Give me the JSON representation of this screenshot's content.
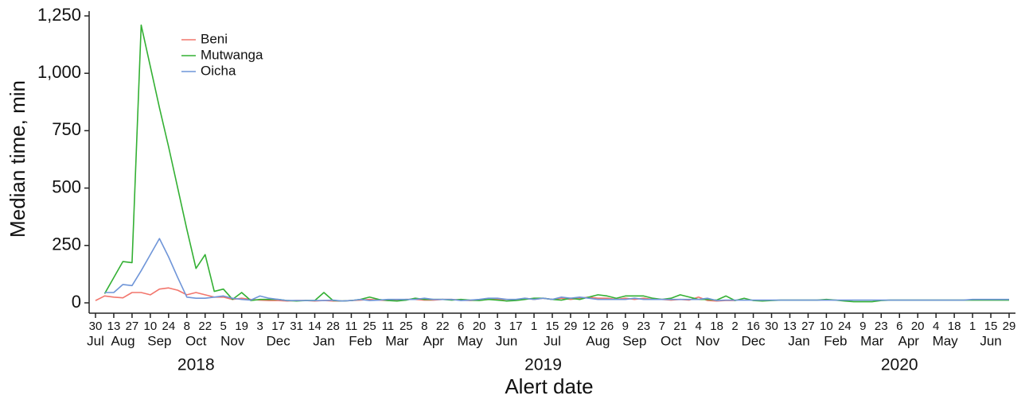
{
  "chart_data": {
    "type": "line",
    "xlabel": "Alert date",
    "ylabel": "Median time, min",
    "legend": "upper left",
    "x": [
      "2018-07-30",
      "2018-08-06",
      "2018-08-13",
      "2018-08-20",
      "2018-08-27",
      "2018-09-03",
      "2018-09-10",
      "2018-09-17",
      "2018-09-24",
      "2018-10-01",
      "2018-10-08",
      "2018-10-15",
      "2018-10-22",
      "2018-10-29",
      "2018-11-05",
      "2018-11-12",
      "2018-11-19",
      "2018-11-26",
      "2018-12-03",
      "2018-12-10",
      "2018-12-17",
      "2018-12-24",
      "2018-12-31",
      "2019-01-07",
      "2019-01-14",
      "2019-01-21",
      "2019-01-28",
      "2019-02-04",
      "2019-02-11",
      "2019-02-18",
      "2019-02-25",
      "2019-03-04",
      "2019-03-11",
      "2019-03-18",
      "2019-03-25",
      "2019-04-01",
      "2019-04-08",
      "2019-04-15",
      "2019-04-22",
      "2019-04-29",
      "2019-05-06",
      "2019-05-13",
      "2019-05-20",
      "2019-05-27",
      "2019-06-03",
      "2019-06-10",
      "2019-06-17",
      "2019-06-24",
      "2019-07-01",
      "2019-07-08",
      "2019-07-15",
      "2019-07-22",
      "2019-07-29",
      "2019-08-05",
      "2019-08-12",
      "2019-08-19",
      "2019-08-26",
      "2019-09-02",
      "2019-09-09",
      "2019-09-16",
      "2019-09-23",
      "2019-09-30",
      "2019-10-07",
      "2019-10-14",
      "2019-10-21",
      "2019-10-28",
      "2019-11-04",
      "2019-11-11",
      "2019-11-18",
      "2019-11-25",
      "2019-12-02",
      "2019-12-09",
      "2019-12-16",
      "2019-12-23",
      "2019-12-30",
      "2020-01-06",
      "2020-01-13",
      "2020-01-20",
      "2020-01-27",
      "2020-02-03",
      "2020-02-10",
      "2020-02-17",
      "2020-02-24",
      "2020-03-02",
      "2020-03-09",
      "2020-03-16",
      "2020-03-23",
      "2020-03-30",
      "2020-04-06",
      "2020-04-13",
      "2020-04-20",
      "2020-04-27",
      "2020-05-04",
      "2020-05-11",
      "2020-05-18",
      "2020-05-25",
      "2020-06-01",
      "2020-06-08",
      "2020-06-15",
      "2020-06-22",
      "2020-06-29"
    ],
    "series": [
      {
        "name": "Beni",
        "color": "#f2766d",
        "values": [
          10,
          30,
          25,
          22,
          45,
          45,
          35,
          60,
          65,
          55,
          35,
          45,
          35,
          25,
          25,
          15,
          20,
          15,
          12,
          10,
          10,
          8,
          10,
          10,
          8,
          10,
          8,
          8,
          10,
          12,
          15,
          12,
          10,
          12,
          15,
          15,
          12,
          12,
          15,
          15,
          12,
          10,
          12,
          15,
          15,
          15,
          12,
          20,
          15,
          20,
          15,
          20,
          15,
          20,
          25,
          20,
          20,
          15,
          20,
          15,
          20,
          15,
          15,
          12,
          15,
          12,
          25,
          10,
          8,
          10,
          10,
          null,
          null,
          null,
          null,
          null,
          null,
          null,
          null,
          null,
          null,
          null,
          null,
          null,
          null,
          null,
          null,
          null,
          null,
          null,
          null,
          null,
          null,
          null,
          null,
          null,
          null,
          null,
          null,
          null,
          null
        ]
      },
      {
        "name": "Mutwanga",
        "color": "#33b033",
        "values": [
          null,
          40,
          110,
          180,
          175,
          1210,
          1030,
          850,
          680,
          500,
          320,
          150,
          210,
          50,
          60,
          15,
          45,
          10,
          15,
          15,
          15,
          10,
          8,
          10,
          10,
          45,
          10,
          8,
          10,
          15,
          25,
          15,
          10,
          8,
          12,
          20,
          15,
          15,
          15,
          12,
          15,
          12,
          10,
          15,
          12,
          8,
          10,
          15,
          20,
          20,
          15,
          12,
          20,
          15,
          25,
          35,
          30,
          20,
          30,
          30,
          30,
          20,
          15,
          20,
          35,
          25,
          15,
          15,
          12,
          30,
          10,
          20,
          10,
          8,
          10,
          12,
          12,
          12,
          12,
          12,
          15,
          12,
          8,
          5,
          5,
          5,
          10,
          12,
          12,
          12,
          12,
          12,
          12,
          12,
          12,
          12,
          12,
          12,
          12,
          12,
          12
        ]
      },
      {
        "name": "Oicha",
        "color": "#6f95d8",
        "values": [
          null,
          45,
          45,
          80,
          75,
          140,
          210,
          280,
          200,
          110,
          25,
          20,
          20,
          25,
          30,
          20,
          15,
          12,
          30,
          20,
          15,
          10,
          10,
          10,
          10,
          10,
          12,
          8,
          10,
          15,
          10,
          12,
          15,
          15,
          15,
          15,
          20,
          15,
          15,
          15,
          10,
          12,
          15,
          20,
          20,
          15,
          15,
          20,
          15,
          20,
          15,
          25,
          20,
          25,
          20,
          15,
          15,
          15,
          15,
          20,
          15,
          15,
          15,
          15,
          15,
          15,
          15,
          20,
          10,
          12,
          12,
          12,
          12,
          12,
          12,
          12,
          12,
          12,
          12,
          12,
          12,
          12,
          12,
          12,
          12,
          12,
          12,
          12,
          12,
          12,
          12,
          12,
          12,
          12,
          12,
          12,
          15,
          15,
          15,
          15,
          15
        ]
      }
    ],
    "xlim": [
      "2018-07-30",
      "2020-06-29"
    ],
    "xticks": [
      {
        "value": "2018-07-30",
        "label": "30"
      },
      {
        "value": "2018-08-13",
        "label": "13"
      },
      {
        "value": "2018-08-27",
        "label": "27"
      },
      {
        "value": "2018-09-10",
        "label": "10"
      },
      {
        "value": "2018-09-24",
        "label": "24"
      },
      {
        "value": "2018-10-08",
        "label": "8"
      },
      {
        "value": "2018-10-22",
        "label": "22"
      },
      {
        "value": "2018-11-05",
        "label": "5"
      },
      {
        "value": "2018-11-19",
        "label": "19"
      },
      {
        "value": "2018-12-03",
        "label": "3"
      },
      {
        "value": "2018-12-17",
        "label": "17"
      },
      {
        "value": "2018-12-31",
        "label": "31"
      },
      {
        "value": "2019-01-14",
        "label": "14"
      },
      {
        "value": "2019-01-28",
        "label": "28"
      },
      {
        "value": "2019-02-11",
        "label": "11"
      },
      {
        "value": "2019-02-25",
        "label": "25"
      },
      {
        "value": "2019-03-11",
        "label": "11"
      },
      {
        "value": "2019-03-25",
        "label": "25"
      },
      {
        "value": "2019-04-08",
        "label": "8"
      },
      {
        "value": "2019-04-22",
        "label": "22"
      },
      {
        "value": "2019-05-06",
        "label": "6"
      },
      {
        "value": "2019-05-20",
        "label": "20"
      },
      {
        "value": "2019-06-03",
        "label": "3"
      },
      {
        "value": "2019-06-17",
        "label": "17"
      },
      {
        "value": "2019-07-01",
        "label": "1"
      },
      {
        "value": "2019-07-15",
        "label": "15"
      },
      {
        "value": "2019-07-29",
        "label": "29"
      },
      {
        "value": "2019-08-12",
        "label": "12"
      },
      {
        "value": "2019-08-26",
        "label": "26"
      },
      {
        "value": "2019-09-09",
        "label": "9"
      },
      {
        "value": "2019-09-23",
        "label": "23"
      },
      {
        "value": "2019-10-07",
        "label": "7"
      },
      {
        "value": "2019-10-21",
        "label": "21"
      },
      {
        "value": "2019-11-04",
        "label": "4"
      },
      {
        "value": "2019-11-18",
        "label": "18"
      },
      {
        "value": "2019-12-02",
        "label": "2"
      },
      {
        "value": "2019-12-16",
        "label": "16"
      },
      {
        "value": "2019-12-30",
        "label": "30"
      },
      {
        "value": "2020-01-13",
        "label": "13"
      },
      {
        "value": "2020-01-27",
        "label": "27"
      },
      {
        "value": "2020-02-10",
        "label": "10"
      },
      {
        "value": "2020-02-24",
        "label": "24"
      },
      {
        "value": "2020-03-09",
        "label": "9"
      },
      {
        "value": "2020-03-23",
        "label": "23"
      },
      {
        "value": "2020-04-06",
        "label": "6"
      },
      {
        "value": "2020-04-20",
        "label": "20"
      },
      {
        "value": "2020-05-04",
        "label": "4"
      },
      {
        "value": "2020-05-18",
        "label": "18"
      },
      {
        "value": "2020-06-01",
        "label": "1"
      },
      {
        "value": "2020-06-15",
        "label": "15"
      },
      {
        "value": "2020-06-29",
        "label": "29"
      }
    ],
    "x_month_labels": [
      "Jul",
      "Aug",
      "Sep",
      "Oct",
      "Nov",
      "Dec",
      "Jan",
      "Feb",
      "Mar",
      "Apr",
      "May",
      "Jun",
      "Jul",
      "Aug",
      "Sep",
      "Oct",
      "Nov",
      "Dec",
      "Jan",
      "Feb",
      "Mar",
      "Apr",
      "May",
      "Jun"
    ],
    "x_year_labels": [
      "2018",
      "2019",
      "2020"
    ],
    "ylim": [
      0,
      1250
    ],
    "yticks": [
      0,
      250,
      500,
      750,
      {
        "value": 1000,
        "label": "1,000"
      },
      {
        "value": 1250,
        "label": "1,250"
      }
    ]
  }
}
